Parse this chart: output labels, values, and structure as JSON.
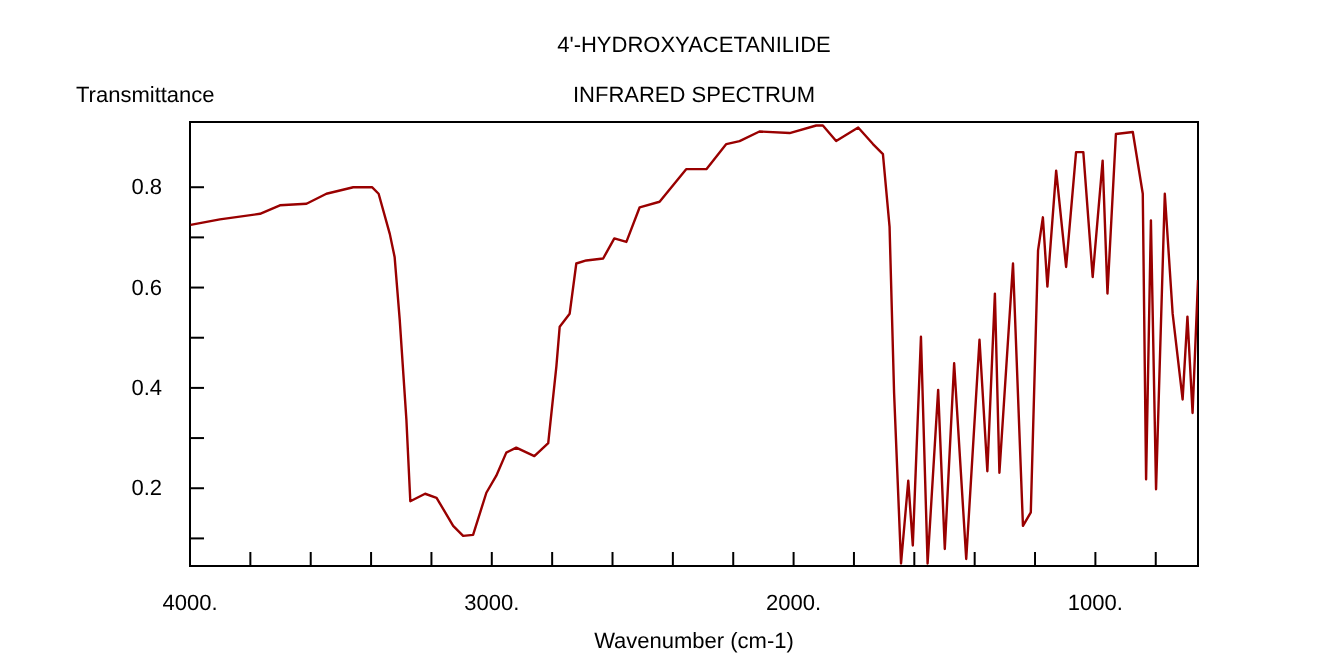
{
  "chart_data": {
    "type": "line",
    "title": "4'-HYDROXYACETANILIDE",
    "subtitle": "INFRARED SPECTRUM",
    "xlabel": "Wavenumber (cm-1)",
    "ylabel": "Transmittance",
    "xlim": [
      4000,
      660
    ],
    "ylim": [
      0.045,
      0.93
    ],
    "xticks": [
      {
        "value": 4000,
        "label": "4000."
      },
      {
        "value": 3800,
        "label": null
      },
      {
        "value": 3600,
        "label": null
      },
      {
        "value": 3400,
        "label": null
      },
      {
        "value": 3200,
        "label": null
      },
      {
        "value": 3000,
        "label": "3000."
      },
      {
        "value": 2800,
        "label": null
      },
      {
        "value": 2600,
        "label": null
      },
      {
        "value": 2400,
        "label": null
      },
      {
        "value": 2200,
        "label": null
      },
      {
        "value": 2000,
        "label": "2000."
      },
      {
        "value": 1800,
        "label": null
      },
      {
        "value": 1600,
        "label": null
      },
      {
        "value": 1400,
        "label": null
      },
      {
        "value": 1200,
        "label": null
      },
      {
        "value": 1000,
        "label": "1000."
      },
      {
        "value": 800,
        "label": null
      }
    ],
    "yticks": [
      {
        "value": 0.1,
        "label": null
      },
      {
        "value": 0.2,
        "label": "0.2"
      },
      {
        "value": 0.3,
        "label": null
      },
      {
        "value": 0.4,
        "label": "0.4"
      },
      {
        "value": 0.5,
        "label": null
      },
      {
        "value": 0.6,
        "label": "0.6"
      },
      {
        "value": 0.7,
        "label": null
      },
      {
        "value": 0.8,
        "label": "0.8"
      }
    ],
    "grid": false,
    "series": [
      {
        "color": "#990000",
        "x": [
          3998,
          3901,
          3768,
          3702,
          3614,
          3548,
          3459,
          3397,
          3375,
          3338,
          3322,
          3305,
          3283,
          3270,
          3221,
          3183,
          3128,
          3095,
          3062,
          3018,
          2985,
          2952,
          2919,
          2859,
          2813,
          2786,
          2775,
          2742,
          2720,
          2687,
          2631,
          2594,
          2554,
          2510,
          2444,
          2356,
          2289,
          2223,
          2179,
          2113,
          2013,
          1925,
          1903,
          1859,
          1786,
          1737,
          1704,
          1682,
          1667,
          1644,
          1620,
          1605,
          1578,
          1556,
          1521,
          1499,
          1468,
          1428,
          1384,
          1358,
          1333,
          1318,
          1273,
          1240,
          1214,
          1190,
          1174,
          1159,
          1130,
          1097,
          1064,
          1040,
          1009,
          976,
          960,
          932,
          876,
          843,
          832,
          816,
          799,
          770,
          744,
          711,
          695,
          678,
          660
        ],
        "values": [
          0.725,
          0.736,
          0.747,
          0.764,
          0.767,
          0.787,
          0.8,
          0.8,
          0.787,
          0.707,
          0.661,
          0.535,
          0.337,
          0.174,
          0.189,
          0.181,
          0.125,
          0.105,
          0.107,
          0.191,
          0.225,
          0.271,
          0.281,
          0.264,
          0.29,
          0.443,
          0.522,
          0.548,
          0.648,
          0.654,
          0.658,
          0.698,
          0.691,
          0.76,
          0.771,
          0.836,
          0.836,
          0.886,
          0.892,
          0.911,
          0.908,
          0.923,
          0.923,
          0.892,
          0.919,
          0.886,
          0.866,
          0.721,
          0.39,
          0.05,
          0.215,
          0.086,
          0.502,
          0.05,
          0.396,
          0.079,
          0.449,
          0.059,
          0.496,
          0.234,
          0.588,
          0.231,
          0.648,
          0.125,
          0.152,
          0.674,
          0.74,
          0.602,
          0.833,
          0.641,
          0.87,
          0.87,
          0.621,
          0.853,
          0.588,
          0.906,
          0.91,
          0.787,
          0.218,
          0.734,
          0.198,
          0.787,
          0.548,
          0.377,
          0.542,
          0.35,
          0.615
        ]
      }
    ]
  }
}
